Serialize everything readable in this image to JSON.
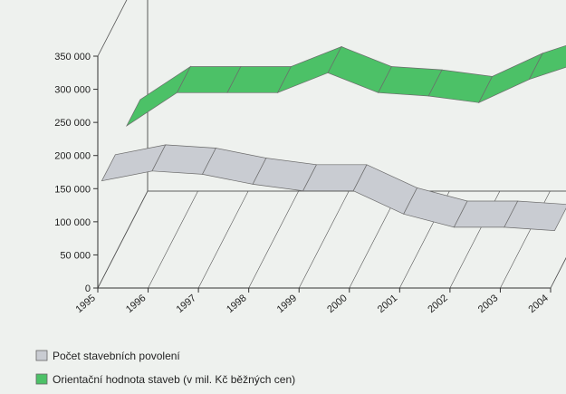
{
  "chart_data": {
    "type": "area",
    "title": "",
    "xlabel": "",
    "ylabel": "",
    "categories": [
      "1995",
      "1996",
      "1997",
      "1998",
      "1999",
      "2000",
      "2001",
      "2002",
      "2003",
      "2004"
    ],
    "ylim": [
      0,
      350000
    ],
    "yticks": [
      0,
      50000,
      100000,
      150000,
      200000,
      250000,
      300000,
      350000
    ],
    "ytick_labels": [
      "0",
      "50 000",
      "100 000",
      "150 000",
      "200 000",
      "250 000",
      "300 000",
      "350 000"
    ],
    "three_d": true,
    "grid": false,
    "legend_position": "bottom-left",
    "series": [
      {
        "name": "Počet stavebních povolení",
        "color": "#c9ccd2",
        "values": [
          150000,
          165000,
          160000,
          145000,
          135000,
          135000,
          100000,
          80000,
          80000,
          75000
        ]
      },
      {
        "name": "Orientační hodnota staveb (v mil. Kč běžných cen)",
        "color": "#4cc167",
        "values": [
          160000,
          210000,
          210000,
          210000,
          240000,
          210000,
          205000,
          195000,
          230000,
          255000
        ]
      }
    ]
  }
}
